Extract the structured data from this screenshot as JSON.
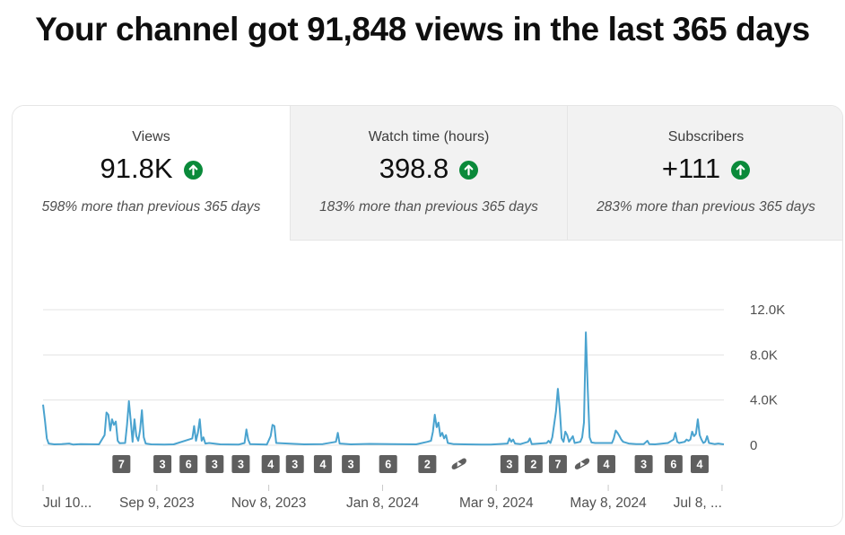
{
  "headline": "Your channel got 91,848 views in the last 365 days",
  "tabs": [
    {
      "label": "Views",
      "value": "91.8K",
      "trend_icon": "arrow-up-circle-icon",
      "subtext": "598% more than previous 365 days",
      "active": true
    },
    {
      "label": "Watch time (hours)",
      "value": "398.8",
      "trend_icon": "arrow-up-circle-icon",
      "subtext": "183% more than previous 365 days",
      "active": false
    },
    {
      "label": "Subscribers",
      "value": "+111",
      "trend_icon": "arrow-up-circle-icon",
      "subtext": "283% more than previous 365 days",
      "active": false
    }
  ],
  "colors": {
    "line": "#4aa3cf",
    "trend_up": "#0a8a3a",
    "marker": "#5f5f5f"
  },
  "chart_data": {
    "type": "line",
    "x_unit": "day index over last 365 days",
    "xlim": [
      0,
      365
    ],
    "ylim": [
      0,
      12000
    ],
    "y_ticks": [
      "12.0K",
      "8.0K",
      "4.0K",
      "0"
    ],
    "y_tick_values": [
      12000,
      8000,
      4000,
      0
    ],
    "x_tick_labels": [
      "Jul 10...",
      "Sep 9, 2023",
      "Nov 8, 2023",
      "Jan 8, 2024",
      "Mar 9, 2024",
      "May 8, 2024",
      "Jul 8, ..."
    ],
    "x_tick_days": [
      0,
      61,
      121,
      182,
      243,
      303,
      364
    ],
    "grid": true,
    "series": [
      {
        "points": [
          [
            0,
            3600
          ],
          [
            1,
            2200
          ],
          [
            2,
            600
          ],
          [
            3,
            150
          ],
          [
            6,
            80
          ],
          [
            10,
            100
          ],
          [
            14,
            150
          ],
          [
            16,
            60
          ],
          [
            20,
            100
          ],
          [
            30,
            80
          ],
          [
            33,
            900
          ],
          [
            34,
            2900
          ],
          [
            35,
            2700
          ],
          [
            36,
            1300
          ],
          [
            37,
            2300
          ],
          [
            38,
            1800
          ],
          [
            39,
            2100
          ],
          [
            40,
            400
          ],
          [
            41,
            180
          ],
          [
            44,
            200
          ],
          [
            45,
            1800
          ],
          [
            46,
            3900
          ],
          [
            47,
            2200
          ],
          [
            48,
            300
          ],
          [
            49,
            2300
          ],
          [
            50,
            800
          ],
          [
            51,
            400
          ],
          [
            52,
            1300
          ],
          [
            53,
            3100
          ],
          [
            54,
            700
          ],
          [
            55,
            150
          ],
          [
            58,
            80
          ],
          [
            65,
            60
          ],
          [
            70,
            80
          ],
          [
            80,
            600
          ],
          [
            81,
            1700
          ],
          [
            82,
            400
          ],
          [
            83,
            1100
          ],
          [
            84,
            2300
          ],
          [
            85,
            400
          ],
          [
            86,
            700
          ],
          [
            87,
            150
          ],
          [
            89,
            200
          ],
          [
            95,
            80
          ],
          [
            105,
            60
          ],
          [
            108,
            200
          ],
          [
            109,
            1400
          ],
          [
            110,
            500
          ],
          [
            111,
            100
          ],
          [
            120,
            60
          ],
          [
            122,
            800
          ],
          [
            123,
            1800
          ],
          [
            124,
            1700
          ],
          [
            125,
            200
          ],
          [
            140,
            80
          ],
          [
            150,
            100
          ],
          [
            157,
            300
          ],
          [
            158,
            1100
          ],
          [
            159,
            150
          ],
          [
            165,
            80
          ],
          [
            175,
            120
          ],
          [
            186,
            100
          ],
          [
            200,
            80
          ],
          [
            206,
            300
          ],
          [
            208,
            400
          ],
          [
            209,
            1200
          ],
          [
            210,
            2700
          ],
          [
            211,
            1600
          ],
          [
            212,
            2000
          ],
          [
            213,
            800
          ],
          [
            214,
            1100
          ],
          [
            215,
            600
          ],
          [
            216,
            900
          ],
          [
            217,
            200
          ],
          [
            220,
            100
          ],
          [
            226,
            80
          ],
          [
            235,
            60
          ],
          [
            240,
            60
          ],
          [
            249,
            150
          ],
          [
            250,
            600
          ],
          [
            251,
            300
          ],
          [
            252,
            500
          ],
          [
            253,
            150
          ],
          [
            256,
            100
          ],
          [
            260,
            300
          ],
          [
            261,
            600
          ],
          [
            262,
            100
          ],
          [
            270,
            200
          ],
          [
            271,
            400
          ],
          [
            272,
            200
          ],
          [
            273,
            700
          ],
          [
            275,
            3000
          ],
          [
            276,
            5000
          ],
          [
            277,
            3200
          ],
          [
            278,
            600
          ],
          [
            279,
            300
          ],
          [
            280,
            1200
          ],
          [
            281,
            900
          ],
          [
            282,
            300
          ],
          [
            284,
            800
          ],
          [
            285,
            200
          ],
          [
            288,
            300
          ],
          [
            289,
            700
          ],
          [
            290,
            2000
          ],
          [
            291,
            10000
          ],
          [
            292,
            5000
          ],
          [
            293,
            700
          ],
          [
            294,
            250
          ],
          [
            296,
            200
          ],
          [
            305,
            200
          ],
          [
            306,
            600
          ],
          [
            307,
            1300
          ],
          [
            308,
            1100
          ],
          [
            309,
            800
          ],
          [
            310,
            500
          ],
          [
            311,
            300
          ],
          [
            314,
            150
          ],
          [
            318,
            100
          ],
          [
            322,
            100
          ],
          [
            324,
            400
          ],
          [
            325,
            100
          ],
          [
            328,
            80
          ],
          [
            335,
            200
          ],
          [
            338,
            500
          ],
          [
            339,
            1100
          ],
          [
            340,
            300
          ],
          [
            341,
            200
          ],
          [
            344,
            300
          ],
          [
            345,
            500
          ],
          [
            346,
            400
          ],
          [
            347,
            500
          ],
          [
            348,
            1200
          ],
          [
            349,
            800
          ],
          [
            350,
            1000
          ],
          [
            351,
            2300
          ],
          [
            352,
            900
          ],
          [
            353,
            500
          ],
          [
            354,
            200
          ],
          [
            355,
            300
          ],
          [
            356,
            800
          ],
          [
            357,
            200
          ],
          [
            360,
            100
          ],
          [
            362,
            150
          ],
          [
            364,
            100
          ],
          [
            365,
            80
          ]
        ]
      }
    ],
    "upload_markers": [
      {
        "day": 42,
        "label": "7"
      },
      {
        "day": 64,
        "label": "3"
      },
      {
        "day": 78,
        "label": "6"
      },
      {
        "day": 92,
        "label": "3"
      },
      {
        "day": 106,
        "label": "3"
      },
      {
        "day": 122,
        "label": "4"
      },
      {
        "day": 135,
        "label": "3"
      },
      {
        "day": 150,
        "label": "4"
      },
      {
        "day": 165,
        "label": "3"
      },
      {
        "day": 185,
        "label": "6"
      },
      {
        "day": 206,
        "label": "2"
      },
      {
        "day": 223,
        "label": "",
        "icon": "shorts-icon"
      },
      {
        "day": 250,
        "label": "3"
      },
      {
        "day": 263,
        "label": "2"
      },
      {
        "day": 276,
        "label": "7"
      },
      {
        "day": 289,
        "label": "",
        "icon": "shorts-icon"
      },
      {
        "day": 302,
        "label": "4"
      },
      {
        "day": 322,
        "label": "3"
      },
      {
        "day": 338,
        "label": "6"
      },
      {
        "day": 352,
        "label": "4"
      }
    ]
  }
}
